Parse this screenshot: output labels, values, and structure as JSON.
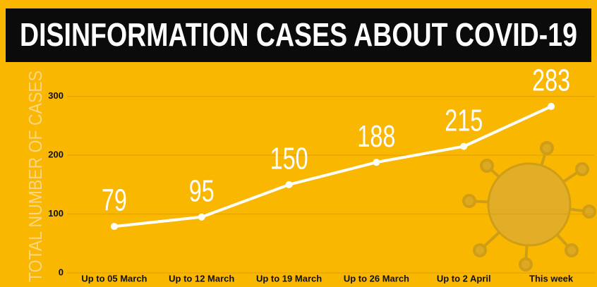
{
  "chart_data": {
    "type": "line",
    "title": "DISINFORMATION CASES ABOUT COVID-19",
    "y_label": "TOTAL NUMBER OF CASES",
    "categories": [
      "Up to 05 March",
      "Up to 12 March",
      "Up to 19 March",
      "Up to 26 March",
      "Up to 2 April",
      "This week"
    ],
    "values": [
      79,
      95,
      150,
      188,
      215,
      283
    ],
    "color": "#ffffff",
    "ylim": [
      0,
      350
    ],
    "yticks": [
      0,
      100,
      200,
      300
    ],
    "grid": true
  }
}
